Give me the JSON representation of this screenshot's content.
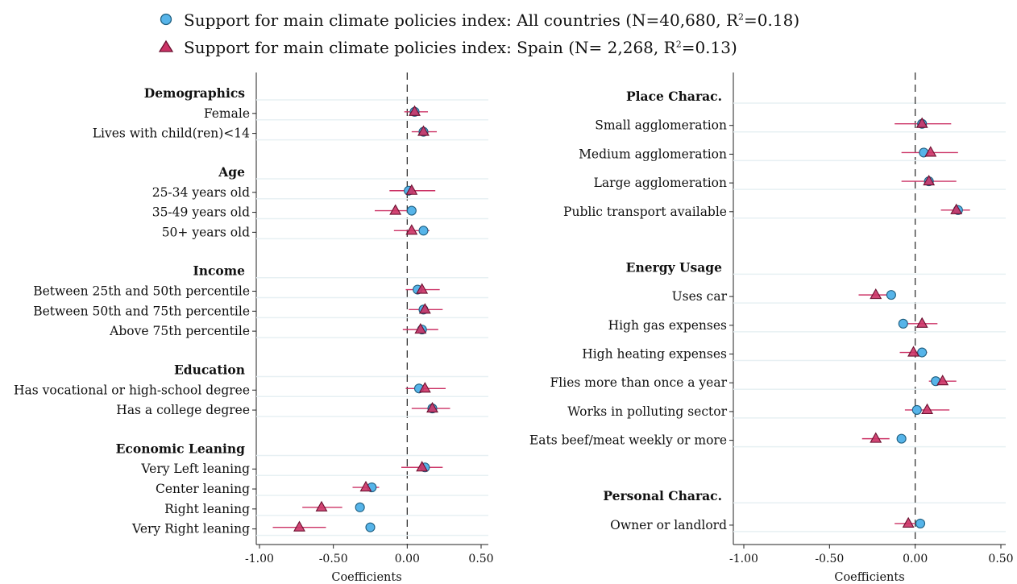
{
  "legend": [
    {
      "label": "Support for main climate policies index: All countries (N=40,680, R",
      "sup": "2",
      "tail": "=0.18)",
      "color": "#56B4E9",
      "marker": "circle"
    },
    {
      "label": "Support for main climate policies index: Spain (N= 2,268, R",
      "sup": "2",
      "tail": "=0.13)",
      "color": "#CC3366",
      "marker": "triangle"
    }
  ],
  "chart_data": [
    {
      "type": "scatter",
      "xlabel": "Coefficients",
      "xlim": [
        -1.0,
        0.55
      ],
      "xticks": [
        -1.0,
        -0.5,
        0.0,
        0.5
      ],
      "xtick_labels": [
        "-1.00",
        "-0.50",
        "0.00",
        "0.50"
      ],
      "reference_line": 0,
      "groups": [
        {
          "label": "Demographics",
          "rows": [
            {
              "label": "Female",
              "all": 0.05,
              "spain": 0.05,
              "ci": [
                -0.02,
                0.14
              ]
            },
            {
              "label": "Lives with child(ren)<14",
              "all": 0.11,
              "spain": 0.11,
              "ci": [
                0.03,
                0.2
              ]
            }
          ]
        },
        {
          "label": "Age",
          "rows": [
            {
              "label": "25-34 years old",
              "all": 0.01,
              "spain": 0.03,
              "ci": [
                -0.12,
                0.19
              ]
            },
            {
              "label": "35-49 years old",
              "all": 0.03,
              "spain": -0.08,
              "ci": [
                -0.22,
                0.06
              ]
            },
            {
              "label": "50+ years old",
              "all": 0.11,
              "spain": 0.03,
              "ci": [
                -0.09,
                0.15
              ]
            }
          ]
        },
        {
          "label": "Income",
          "rows": [
            {
              "label": "Between 25th and 50th percentile",
              "all": 0.07,
              "spain": 0.1,
              "ci": [
                -0.01,
                0.22
              ]
            },
            {
              "label": "Between 50th and 75th percentile",
              "all": 0.11,
              "spain": 0.12,
              "ci": [
                0.01,
                0.24
              ]
            },
            {
              "label": "Above 75th percentile",
              "all": 0.1,
              "spain": 0.09,
              "ci": [
                -0.03,
                0.21
              ]
            }
          ]
        },
        {
          "label": "Education",
          "rows": [
            {
              "label": "Has vocational or high-school degree",
              "all": 0.08,
              "spain": 0.12,
              "ci": [
                -0.01,
                0.26
              ]
            },
            {
              "label": "Has a college degree",
              "all": 0.17,
              "spain": 0.17,
              "ci": [
                0.03,
                0.29
              ]
            }
          ]
        },
        {
          "label": "Economic Leaning",
          "rows": [
            {
              "label": "Very Left leaning",
              "all": 0.12,
              "spain": 0.1,
              "ci": [
                -0.04,
                0.24
              ]
            },
            {
              "label": "Center leaning",
              "all": -0.24,
              "spain": -0.28,
              "ci": [
                -0.37,
                -0.19
              ]
            },
            {
              "label": "Right leaning",
              "all": -0.32,
              "spain": -0.58,
              "ci": [
                -0.71,
                -0.44
              ]
            },
            {
              "label": "Very Right leaning",
              "all": -0.25,
              "spain": -0.73,
              "ci": [
                -0.91,
                -0.55
              ]
            }
          ]
        }
      ]
    },
    {
      "type": "scatter",
      "xlabel": "Coefficients",
      "xlim": [
        -1.05,
        0.52
      ],
      "xticks": [
        -1.0,
        -0.5,
        0.0,
        0.5
      ],
      "xtick_labels": [
        "-1.00",
        "-0.50",
        "0.00",
        "0.50"
      ],
      "reference_line": 0,
      "groups": [
        {
          "label": "Place Charac.",
          "rows": [
            {
              "label": "Small agglomeration",
              "all": 0.04,
              "spain": 0.04,
              "ci": [
                -0.12,
                0.21
              ]
            },
            {
              "label": "Medium agglomeration",
              "all": 0.05,
              "spain": 0.09,
              "ci": [
                -0.08,
                0.25
              ]
            },
            {
              "label": "Large agglomeration",
              "all": 0.08,
              "spain": 0.08,
              "ci": [
                -0.08,
                0.24
              ]
            },
            {
              "label": "Public transport available",
              "all": 0.25,
              "spain": 0.24,
              "ci": [
                0.15,
                0.32
              ]
            }
          ]
        },
        {
          "label": "Energy Usage",
          "rows": [
            {
              "label": "Uses car",
              "all": -0.14,
              "spain": -0.23,
              "ci": [
                -0.33,
                -0.13
              ]
            },
            {
              "label": "High gas expenses",
              "all": -0.07,
              "spain": 0.04,
              "ci": [
                -0.05,
                0.13
              ]
            },
            {
              "label": "High heating expenses",
              "all": 0.04,
              "spain": -0.01,
              "ci": [
                -0.09,
                0.07
              ]
            },
            {
              "label": "Flies more than once a year",
              "all": 0.12,
              "spain": 0.16,
              "ci": [
                0.08,
                0.24
              ]
            },
            {
              "label": "Works in polluting sector",
              "all": 0.01,
              "spain": 0.07,
              "ci": [
                -0.06,
                0.2
              ]
            },
            {
              "label": "Eats beef/meat weekly or more",
              "all": -0.08,
              "spain": -0.23,
              "ci": [
                -0.31,
                -0.15
              ]
            }
          ]
        },
        {
          "label": "Personal Charac.",
          "rows": [
            {
              "label": "Owner or landlord",
              "all": 0.03,
              "spain": -0.04,
              "ci": [
                -0.12,
                0.05
              ]
            }
          ]
        }
      ]
    }
  ]
}
